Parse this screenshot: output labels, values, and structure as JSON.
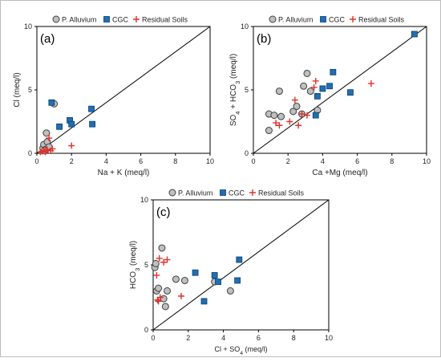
{
  "figure": {
    "legend_labels": [
      "P. Alluvium",
      "CGC",
      "Residual Soils"
    ],
    "colors": {
      "alluvium_fill": "#bfbfbf",
      "alluvium_stroke": "#404040",
      "cgc_fill": "#1f6fb5",
      "cgc_stroke": "#0b3f6e",
      "residual": "#e0302a",
      "axis": "#000000"
    },
    "icons": {
      "alluvium": "grey-circle",
      "cgc": "blue-square",
      "residual": "red-plus"
    }
  },
  "chart_data": [
    {
      "type": "scatter",
      "panel_label": "(a)",
      "xlabel": "Na + K (meq/l)",
      "ylabel": "Cl (meq/l)",
      "xlim": [
        0,
        10
      ],
      "ylim": [
        0,
        10
      ],
      "xticks": [
        "0",
        "2",
        "4",
        "6",
        "8",
        "10"
      ],
      "yticks": [
        "0",
        "5",
        "10"
      ],
      "reference_line": "1:1",
      "legend_position": "top-left",
      "series": [
        {
          "name": "P. Alluvium",
          "points": [
            [
              0.35,
              0.4
            ],
            [
              0.4,
              0.7
            ],
            [
              0.5,
              0.3
            ],
            [
              0.55,
              1.6
            ],
            [
              0.6,
              0.9
            ],
            [
              0.7,
              0.5
            ],
            [
              1.0,
              3.9
            ],
            [
              0.45,
              0.2
            ]
          ]
        },
        {
          "name": "CGC",
          "points": [
            [
              0.85,
              4.0
            ],
            [
              1.3,
              2.1
            ],
            [
              1.9,
              2.6
            ],
            [
              2.0,
              2.3
            ],
            [
              3.15,
              3.5
            ],
            [
              3.2,
              2.3
            ]
          ]
        },
        {
          "name": "Residual Soils",
          "points": [
            [
              0.2,
              0.1
            ],
            [
              0.3,
              0.15
            ],
            [
              0.4,
              0.2
            ],
            [
              0.5,
              0.1
            ],
            [
              0.6,
              0.3
            ],
            [
              0.7,
              1.2
            ],
            [
              0.8,
              0.2
            ],
            [
              0.9,
              0.35
            ],
            [
              2.0,
              0.6
            ]
          ]
        }
      ]
    },
    {
      "type": "scatter",
      "panel_label": "(b)",
      "xlabel": "Ca +Mg (meq/l)",
      "ylabel": "SO4 + HCO3 (meq/l)",
      "xlim": [
        0,
        10
      ],
      "ylim": [
        0,
        10
      ],
      "xticks": [
        "0",
        "2",
        "4",
        "6",
        "8",
        "10"
      ],
      "yticks": [
        "0",
        "5",
        "10"
      ],
      "reference_line": "1:1",
      "legend_position": "top-left",
      "series": [
        {
          "name": "P. Alluvium",
          "points": [
            [
              0.9,
              1.8
            ],
            [
              0.9,
              3.1
            ],
            [
              1.2,
              3.0
            ],
            [
              1.5,
              4.9
            ],
            [
              1.6,
              2.9
            ],
            [
              2.3,
              3.3
            ],
            [
              2.5,
              3.7
            ],
            [
              2.9,
              5.3
            ],
            [
              3.1,
              6.3
            ],
            [
              3.3,
              4.9
            ],
            [
              3.7,
              3.4
            ],
            [
              2.8,
              3.1
            ]
          ]
        },
        {
          "name": "CGC",
          "points": [
            [
              3.6,
              3.0
            ],
            [
              3.7,
              4.5
            ],
            [
              4.0,
              5.1
            ],
            [
              4.4,
              5.3
            ],
            [
              4.6,
              6.4
            ],
            [
              5.6,
              4.8
            ],
            [
              9.3,
              9.4
            ]
          ]
        },
        {
          "name": "Residual Soils",
          "points": [
            [
              1.3,
              2.4
            ],
            [
              1.5,
              2.2
            ],
            [
              2.1,
              2.5
            ],
            [
              2.4,
              4.2
            ],
            [
              2.6,
              2.2
            ],
            [
              2.8,
              3.1
            ],
            [
              3.1,
              3.0
            ],
            [
              3.6,
              5.7
            ],
            [
              3.5,
              5.2
            ],
            [
              6.8,
              5.5
            ]
          ]
        }
      ]
    },
    {
      "type": "scatter",
      "panel_label": "(c)",
      "xlabel": "Cl + SO4 (meq/l)",
      "ylabel": "HCO3 (meq/l)",
      "xlim": [
        0,
        10
      ],
      "ylim": [
        0,
        10
      ],
      "xticks": [
        "0",
        "2",
        "4",
        "6",
        "8",
        "10"
      ],
      "yticks": [
        "0",
        "5",
        "10"
      ],
      "reference_line": "1:1",
      "legend_position": "top-left",
      "series": [
        {
          "name": "P. Alluvium",
          "points": [
            [
              0.1,
              4.8
            ],
            [
              0.15,
              5.1
            ],
            [
              0.2,
              3.0
            ],
            [
              0.3,
              3.2
            ],
            [
              0.5,
              6.3
            ],
            [
              0.6,
              2.4
            ],
            [
              0.7,
              1.8
            ],
            [
              0.8,
              3.0
            ],
            [
              1.3,
              3.9
            ],
            [
              1.8,
              3.8
            ],
            [
              3.5,
              3.7
            ],
            [
              4.4,
              3.0
            ]
          ]
        },
        {
          "name": "CGC",
          "points": [
            [
              2.4,
              4.4
            ],
            [
              2.9,
              2.2
            ],
            [
              3.5,
              4.2
            ],
            [
              3.7,
              3.7
            ],
            [
              4.8,
              3.8
            ],
            [
              4.9,
              5.4
            ]
          ]
        },
        {
          "name": "Residual Soils",
          "points": [
            [
              0.2,
              4.2
            ],
            [
              0.25,
              2.3
            ],
            [
              0.3,
              2.2
            ],
            [
              0.35,
              5.5
            ],
            [
              0.4,
              2.5
            ],
            [
              0.6,
              5.2
            ],
            [
              0.8,
              5.4
            ],
            [
              1.6,
              2.6
            ]
          ]
        }
      ]
    }
  ]
}
